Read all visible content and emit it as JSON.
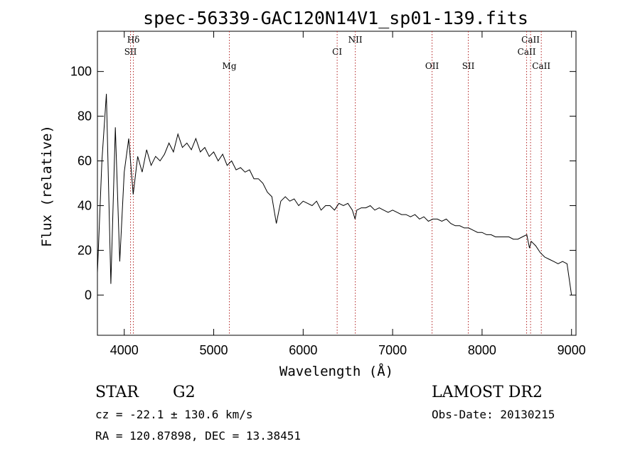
{
  "chart_data": {
    "type": "line",
    "title": "spec-56339-GAC120N14V1_sp01-139.fits",
    "xlabel": "Wavelength (Å)",
    "ylabel": "Flux (relative)",
    "xlim": [
      3700,
      9050
    ],
    "ylim": [
      -18,
      118
    ],
    "xticks": [
      4000,
      5000,
      6000,
      7000,
      8000,
      9000
    ],
    "yticks": [
      0,
      20,
      40,
      60,
      80,
      100
    ],
    "grid": false,
    "series": [
      {
        "name": "flux",
        "x": [
          3700,
          3750,
          3800,
          3850,
          3900,
          3950,
          4000,
          4050,
          4100,
          4150,
          4200,
          4250,
          4300,
          4350,
          4400,
          4450,
          4500,
          4550,
          4600,
          4650,
          4700,
          4750,
          4800,
          4850,
          4900,
          4950,
          5000,
          5050,
          5100,
          5150,
          5200,
          5250,
          5300,
          5350,
          5400,
          5450,
          5500,
          5550,
          5600,
          5650,
          5700,
          5750,
          5800,
          5850,
          5900,
          5950,
          6000,
          6050,
          6100,
          6150,
          6200,
          6250,
          6300,
          6350,
          6400,
          6450,
          6500,
          6550,
          6580,
          6600,
          6650,
          6700,
          6750,
          6800,
          6850,
          6900,
          6950,
          7000,
          7050,
          7100,
          7150,
          7200,
          7250,
          7300,
          7350,
          7400,
          7450,
          7500,
          7550,
          7600,
          7650,
          7700,
          7750,
          7800,
          7850,
          7900,
          7950,
          8000,
          8050,
          8100,
          8150,
          8200,
          8250,
          8300,
          8350,
          8400,
          8450,
          8500,
          8530,
          8550,
          8600,
          8650,
          8700,
          8750,
          8800,
          8850,
          8900,
          8950,
          9000
        ],
        "y": [
          10,
          60,
          90,
          5,
          75,
          15,
          55,
          70,
          45,
          62,
          55,
          65,
          58,
          62,
          60,
          63,
          68,
          64,
          72,
          66,
          68,
          65,
          70,
          64,
          66,
          62,
          64,
          60,
          63,
          58,
          60,
          56,
          57,
          55,
          56,
          52,
          52,
          50,
          46,
          44,
          32,
          42,
          44,
          42,
          43,
          40,
          42,
          41,
          40,
          42,
          38,
          40,
          40,
          38,
          41,
          40,
          41,
          38,
          34,
          38,
          39,
          39,
          40,
          38,
          39,
          38,
          37,
          38,
          37,
          36,
          36,
          35,
          36,
          34,
          35,
          33,
          34,
          34,
          33,
          34,
          32,
          31,
          31,
          30,
          30,
          29,
          28,
          28,
          27,
          27,
          26,
          26,
          26,
          26,
          25,
          25,
          26,
          27,
          21,
          24,
          22,
          19,
          17,
          16,
          15,
          14,
          15,
          14,
          0
        ]
      }
    ],
    "spectral_lines": [
      {
        "label": "Hδ",
        "wavelength": 4102,
        "row": 0
      },
      {
        "label": "SII",
        "wavelength": 4070,
        "row": 1
      },
      {
        "label": "Mg",
        "wavelength": 5175,
        "row": 2
      },
      {
        "label": "CI",
        "wavelength": 6380,
        "row": 1
      },
      {
        "label": "NII",
        "wavelength": 6583,
        "row": 0
      },
      {
        "label": "OII",
        "wavelength": 7441,
        "row": 2
      },
      {
        "label": "SII",
        "wavelength": 7846,
        "row": 2
      },
      {
        "label": "CaII",
        "wavelength": 8542,
        "row": 0
      },
      {
        "label": "CaII",
        "wavelength": 8498,
        "row": 1
      },
      {
        "label": "CaII",
        "wavelength": 8662,
        "row": 2
      }
    ]
  },
  "info": {
    "class": "STAR",
    "subclass": "G2",
    "survey": "LAMOST DR2",
    "cz": "cz = -22.1 ± 130.6 km/s",
    "obs_date": "Obs-Date: 20130215",
    "coords": "RA = 120.87898, DEC =  13.38451"
  },
  "colors": {
    "line_marker": "#b22222",
    "spectrum": "#000000"
  }
}
